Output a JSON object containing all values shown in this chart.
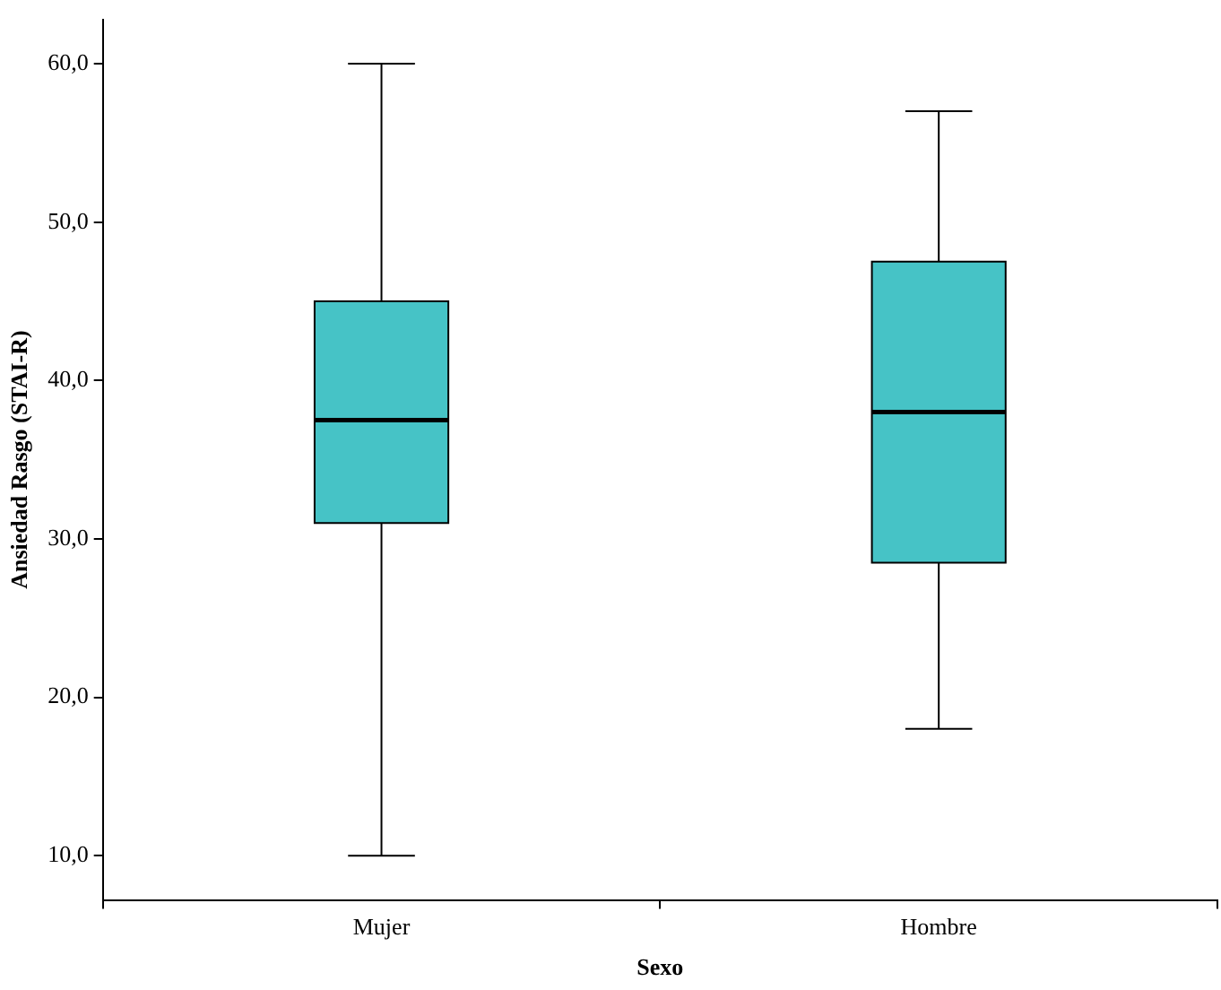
{
  "chart_data": {
    "type": "box",
    "xlabel": "Sexo",
    "ylabel": "Ansiedad Rasgo (STAI-R)",
    "categories": [
      "Mujer",
      "Hombre"
    ],
    "color": "#46c3c6",
    "boxes": [
      {
        "low": 10,
        "q1": 31,
        "median": 37.5,
        "q3": 45,
        "high": 60
      },
      {
        "low": 18,
        "q1": 28.5,
        "median": 38,
        "q3": 47.5,
        "high": 57
      }
    ],
    "ylim": [
      7.2,
      62.8
    ],
    "yticks": [
      {
        "value": 10,
        "label": "10,0"
      },
      {
        "value": 20,
        "label": "20,0"
      },
      {
        "value": 30,
        "label": "30,0"
      },
      {
        "value": 40,
        "label": "40,0"
      },
      {
        "value": 50,
        "label": "50,0"
      },
      {
        "value": 60,
        "label": "60,0"
      }
    ]
  }
}
